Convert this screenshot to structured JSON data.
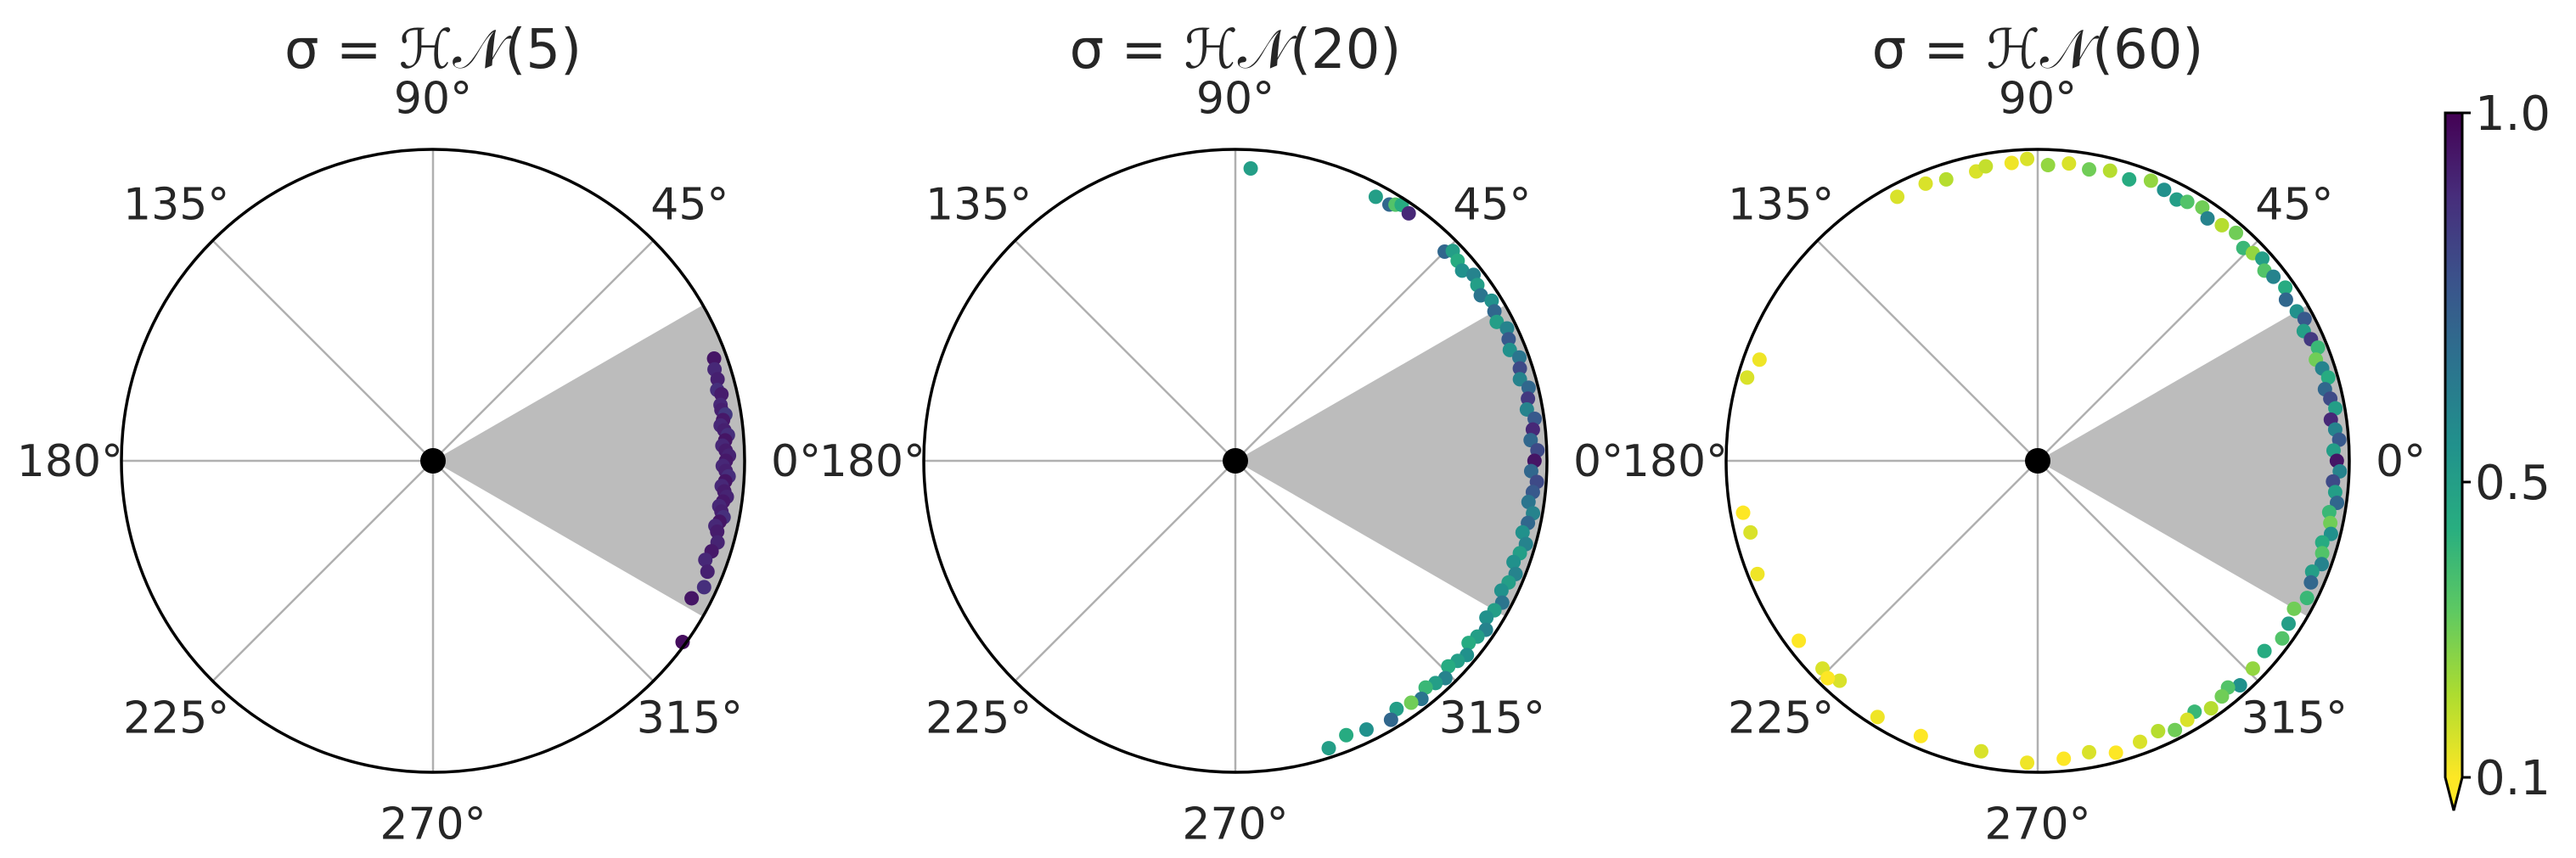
{
  "chart_data": [
    {
      "type": "scatter",
      "projection": "polar",
      "title": "σ = ℋ𝒩(5)",
      "theta_ticks": [
        "0°",
        "45°",
        "90°",
        "135°",
        "180°",
        "225°",
        "270°",
        "315°"
      ],
      "grid": true,
      "shaded_wedge_deg": [
        -30,
        30
      ],
      "center_marker": "black-dot",
      "radius": 1.0,
      "points": {
        "theta_deg": [
          20,
          18,
          16,
          14,
          13,
          11,
          10,
          9,
          8,
          7,
          6,
          5,
          4,
          3,
          2,
          1,
          0,
          -1,
          -2,
          -3,
          -4,
          -5,
          -6,
          -7,
          -8,
          -9,
          -10,
          -11,
          -12,
          -13,
          -14,
          -16,
          -18,
          -20,
          -22,
          -25,
          -28,
          -36
        ],
        "r": [
          0.96,
          0.95,
          0.95,
          0.94,
          0.95,
          0.94,
          0.94,
          0.95,
          0.94,
          0.93,
          0.94,
          0.95,
          0.94,
          0.93,
          0.94,
          0.95,
          0.94,
          0.93,
          0.94,
          0.95,
          0.94,
          0.93,
          0.94,
          0.95,
          0.94,
          0.93,
          0.94,
          0.95,
          0.94,
          0.93,
          0.94,
          0.95,
          0.94,
          0.93,
          0.95,
          0.96,
          0.94,
          0.99
        ],
        "color_value": [
          0.95,
          0.9,
          0.92,
          0.88,
          0.93,
          0.9,
          0.92,
          0.85,
          0.94,
          0.9,
          0.92,
          0.88,
          0.95,
          0.9,
          0.93,
          0.91,
          0.94,
          0.9,
          0.92,
          0.88,
          0.95,
          0.9,
          0.93,
          0.91,
          0.94,
          0.9,
          0.92,
          0.88,
          0.95,
          0.9,
          0.93,
          0.91,
          0.94,
          0.9,
          0.92,
          0.88,
          0.95,
          0.97
        ]
      }
    },
    {
      "type": "scatter",
      "projection": "polar",
      "title": "σ = ℋ𝒩(20)",
      "theta_ticks": [
        "0°",
        "45°",
        "90°",
        "135°",
        "180°",
        "225°",
        "270°",
        "315°"
      ],
      "grid": true,
      "shaded_wedge_deg": [
        -30,
        30
      ],
      "center_marker": "black-dot",
      "radius": 1.0,
      "points": {
        "theta_deg": [
          87,
          62,
          59,
          58,
          57,
          55,
          45,
          44,
          42,
          40,
          38,
          36,
          34,
          32,
          30,
          28,
          26,
          24,
          22,
          20,
          18,
          16,
          14,
          12,
          10,
          8,
          6,
          4,
          2,
          0,
          -2,
          -4,
          -6,
          -8,
          -10,
          -12,
          -14,
          -16,
          -18,
          -20,
          -22,
          -24,
          -26,
          -28,
          -30,
          -32,
          -34,
          -36,
          -38,
          -40,
          -42,
          -44,
          -46,
          -48,
          -50,
          -52,
          -54,
          -57,
          -59,
          -64,
          -68,
          -72
        ],
        "r": [
          0.94,
          0.96,
          0.96,
          0.97,
          0.98,
          0.97,
          0.95,
          0.97,
          0.96,
          0.95,
          0.97,
          0.96,
          0.95,
          0.97,
          0.96,
          0.95,
          0.97,
          0.96,
          0.95,
          0.97,
          0.96,
          0.95,
          0.97,
          0.96,
          0.95,
          0.97,
          0.96,
          0.95,
          0.97,
          0.96,
          0.95,
          0.97,
          0.96,
          0.95,
          0.97,
          0.96,
          0.95,
          0.97,
          0.96,
          0.95,
          0.97,
          0.96,
          0.95,
          0.97,
          0.96,
          0.95,
          0.97,
          0.96,
          0.95,
          0.97,
          0.96,
          0.95,
          0.97,
          0.96,
          0.95,
          0.97,
          0.96,
          0.95,
          0.97,
          0.96,
          0.95,
          0.97
        ],
        "color_value": [
          0.5,
          0.5,
          0.7,
          0.35,
          0.45,
          0.9,
          0.7,
          0.5,
          0.45,
          0.55,
          0.6,
          0.5,
          0.65,
          0.55,
          0.7,
          0.5,
          0.6,
          0.75,
          0.55,
          0.65,
          0.8,
          0.6,
          0.7,
          0.85,
          0.6,
          0.75,
          0.9,
          0.7,
          0.8,
          0.95,
          0.7,
          0.8,
          0.75,
          0.65,
          0.6,
          0.7,
          0.55,
          0.6,
          0.5,
          0.55,
          0.6,
          0.5,
          0.55,
          0.65,
          0.5,
          0.55,
          0.6,
          0.5,
          0.45,
          0.55,
          0.5,
          0.45,
          0.6,
          0.5,
          0.4,
          0.65,
          0.3,
          0.5,
          0.7,
          0.55,
          0.45,
          0.5
        ]
      }
    },
    {
      "type": "scatter",
      "projection": "polar",
      "title": "σ = ℋ𝒩(60)",
      "theta_ticks": [
        "0°",
        "45°",
        "90°",
        "135°",
        "180°",
        "225°",
        "270°",
        "315°"
      ],
      "grid": true,
      "shaded_wedge_deg": [
        -30,
        30
      ],
      "center_marker": "black-dot",
      "radius": 1.0,
      "points": {
        "theta_deg": [
          118,
          112,
          108,
          102,
          100,
          95,
          92,
          88,
          84,
          80,
          76,
          72,
          68,
          65,
          62,
          60,
          57,
          55,
          52,
          49,
          46,
          44,
          42,
          40,
          38,
          35,
          33,
          30,
          28,
          26,
          24,
          22,
          20,
          18,
          16,
          14,
          12,
          10,
          8,
          6,
          4,
          2,
          0,
          -2,
          -4,
          -6,
          -8,
          -10,
          -12,
          -14,
          -16,
          -18,
          -20,
          -22,
          -24,
          -27,
          -30,
          -33,
          -36,
          -40,
          -44,
          -48,
          -50,
          -52,
          -55,
          -58,
          -60,
          -63,
          -66,
          -70,
          -75,
          -80,
          -85,
          -92,
          -101,
          -113,
          -122,
          -132,
          -143,
          -158,
          -166,
          -170,
          -196,
          -200,
          -136,
          -134
        ],
        "r": [
          0.96,
          0.96,
          0.95,
          0.95,
          0.96,
          0.96,
          0.97,
          0.95,
          0.96,
          0.95,
          0.96,
          0.95,
          0.97,
          0.96,
          0.95,
          0.96,
          0.97,
          0.95,
          0.96,
          0.97,
          0.95,
          0.96,
          0.97,
          0.95,
          0.96,
          0.97,
          0.95,
          0.96,
          0.97,
          0.95,
          0.96,
          0.97,
          0.95,
          0.96,
          0.97,
          0.95,
          0.96,
          0.97,
          0.95,
          0.96,
          0.97,
          0.95,
          0.96,
          0.97,
          0.95,
          0.96,
          0.97,
          0.95,
          0.96,
          0.97,
          0.95,
          0.96,
          0.97,
          0.95,
          0.96,
          0.97,
          0.95,
          0.96,
          0.97,
          0.95,
          0.96,
          0.97,
          0.95,
          0.96,
          0.97,
          0.95,
          0.96,
          0.97,
          0.95,
          0.96,
          0.97,
          0.95,
          0.96,
          0.97,
          0.95,
          0.96,
          0.97,
          0.95,
          0.96,
          0.97,
          0.95,
          0.96,
          0.97,
          0.95,
          0.96,
          0.97
        ],
        "color_value": [
          0.15,
          0.15,
          0.2,
          0.15,
          0.18,
          0.12,
          0.15,
          0.25,
          0.15,
          0.3,
          0.2,
          0.45,
          0.25,
          0.55,
          0.5,
          0.35,
          0.3,
          0.6,
          0.2,
          0.3,
          0.4,
          0.25,
          0.5,
          0.35,
          0.6,
          0.45,
          0.7,
          0.55,
          0.75,
          0.5,
          0.85,
          0.4,
          0.3,
          0.6,
          0.45,
          0.7,
          0.8,
          0.5,
          0.9,
          0.6,
          0.75,
          0.5,
          0.95,
          0.6,
          0.8,
          0.5,
          0.7,
          0.4,
          0.3,
          0.55,
          0.45,
          0.35,
          0.6,
          0.5,
          0.7,
          0.4,
          0.3,
          0.5,
          0.35,
          0.45,
          0.25,
          0.55,
          0.35,
          0.3,
          0.2,
          0.4,
          0.15,
          0.3,
          0.2,
          0.15,
          0.1,
          0.15,
          0.1,
          0.12,
          0.15,
          0.1,
          0.12,
          0.15,
          0.1,
          0.12,
          0.15,
          0.1,
          0.15,
          0.12,
          0.15,
          0.1
        ]
      }
    }
  ],
  "colorbar": {
    "colormap": "viridis_r",
    "ticks": [
      "1.0",
      "0.5",
      "0.1"
    ],
    "tick_values": [
      1.0,
      0.5,
      0.1
    ],
    "range": [
      0.1,
      1.0
    ],
    "extend": "min"
  },
  "colors": {
    "wedge": "#bcbcbc",
    "grid": "#b0b0b0",
    "spine": "#000000",
    "text": "#262626"
  }
}
